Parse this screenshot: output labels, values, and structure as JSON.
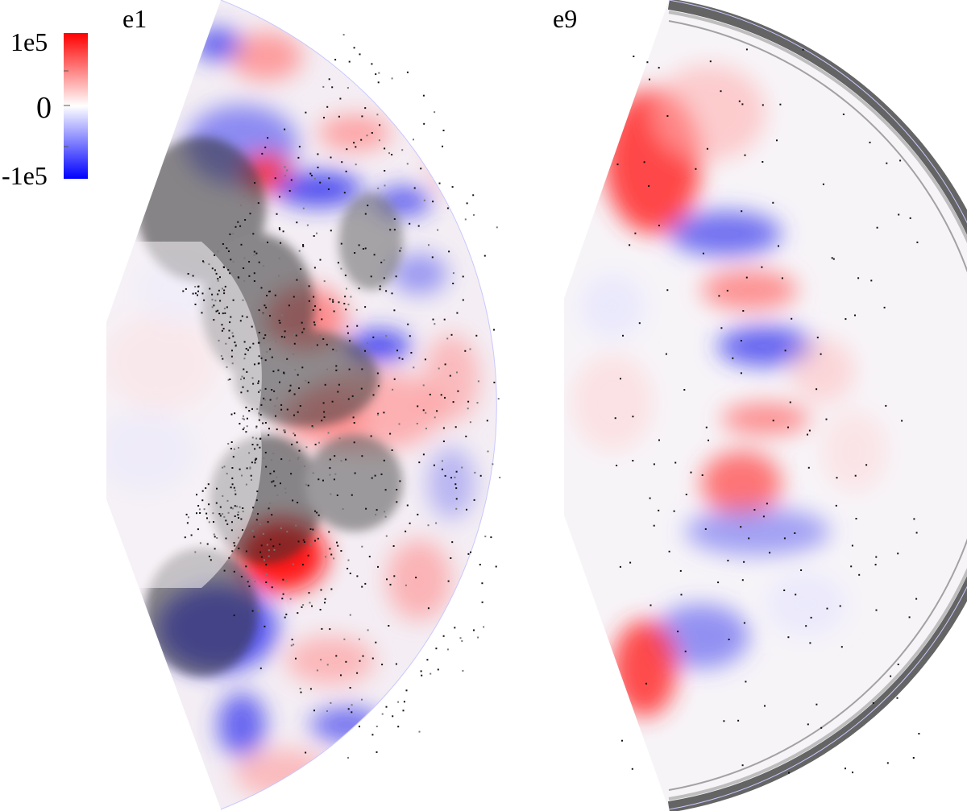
{
  "figure": {
    "colorbar": {
      "tick_labels": [
        "1e5",
        "0",
        "-1e5"
      ],
      "colors": {
        "high": "#ff0000",
        "mid": "#ffffff",
        "low": "#0000ff"
      }
    },
    "panels": [
      {
        "label": "e1"
      },
      {
        "label": "e9"
      }
    ]
  }
}
